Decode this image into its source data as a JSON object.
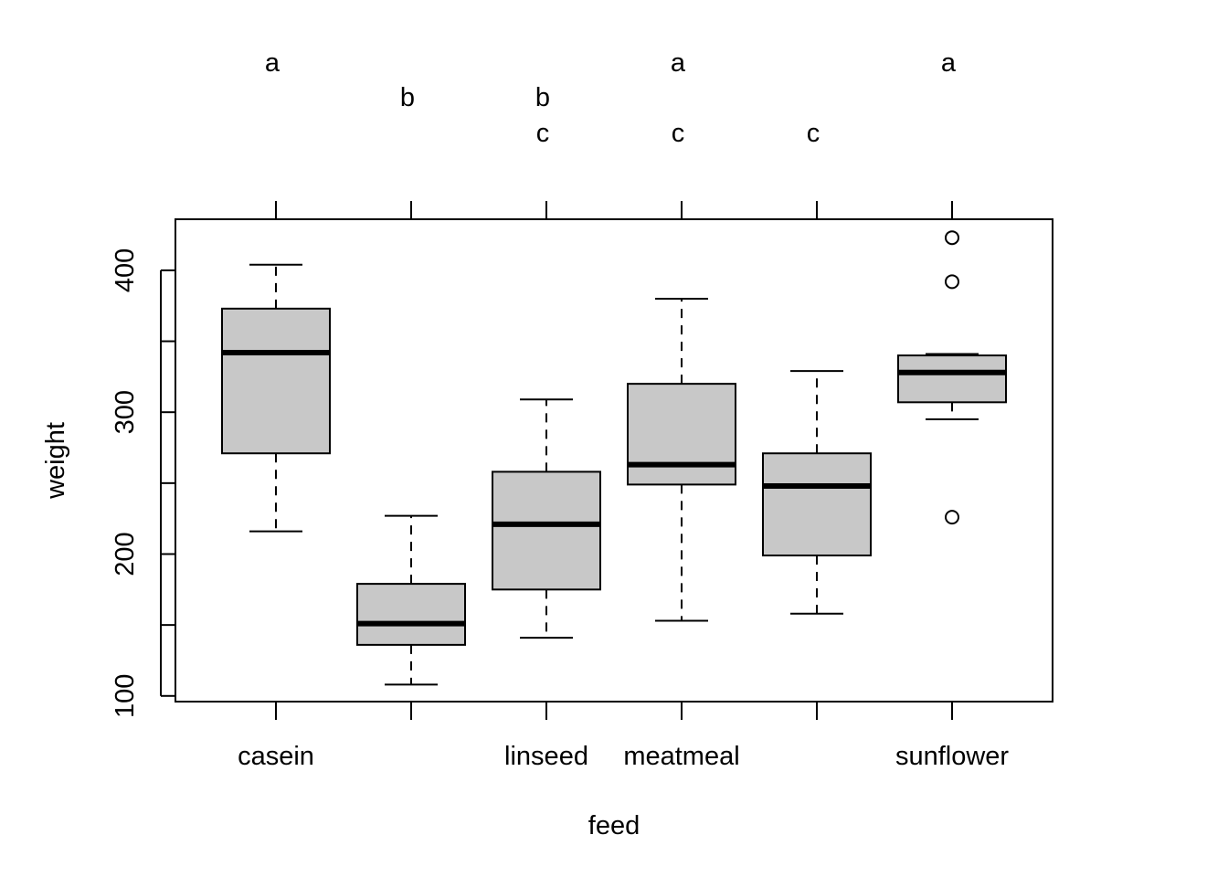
{
  "chart_data": {
    "type": "boxplot",
    "xlabel": "feed",
    "ylabel": "weight",
    "ylim": [
      96,
      436
    ],
    "y_ticks": [
      100,
      150,
      200,
      250,
      300,
      350,
      400
    ],
    "y_tick_labels": [
      "100",
      "200",
      "300",
      "400"
    ],
    "x_tick_labels": [
      "casein",
      "",
      "linseed",
      "meatmeal",
      "",
      "sunflower"
    ],
    "groups": [
      {
        "category": "casein",
        "letters": "a",
        "whisker_low": 216,
        "q1": 271,
        "median": 342,
        "q3": 373,
        "whisker_high": 404,
        "outliers": []
      },
      {
        "category": "",
        "letters": "b",
        "whisker_low": 108,
        "q1": 136,
        "median": 151,
        "q3": 179,
        "whisker_high": 227,
        "outliers": []
      },
      {
        "category": "linseed",
        "letters": "bc",
        "whisker_low": 141,
        "q1": 175,
        "median": 221,
        "q3": 258,
        "whisker_high": 309,
        "outliers": []
      },
      {
        "category": "meatmeal",
        "letters": "ac",
        "whisker_low": 153,
        "q1": 249,
        "median": 263,
        "q3": 320,
        "whisker_high": 380,
        "outliers": []
      },
      {
        "category": "",
        "letters": "c",
        "whisker_low": 158,
        "q1": 199,
        "median": 248,
        "q3": 271,
        "whisker_high": 329,
        "outliers": []
      },
      {
        "category": "sunflower",
        "letters": "a",
        "whisker_low": 295,
        "q1": 307,
        "median": 328,
        "q3": 340,
        "whisker_high": 341,
        "outliers": [
          423,
          392,
          226
        ]
      }
    ],
    "box_fill": "#c8c8c8",
    "line_color": "#000000",
    "grid": false,
    "legend": "none"
  }
}
